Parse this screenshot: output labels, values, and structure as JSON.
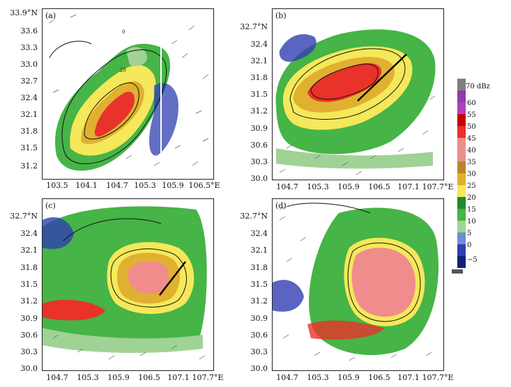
{
  "panels": [
    {
      "label": "(a)",
      "yticks": [
        "33.9°N",
        "33.6",
        "33.3",
        "33.0",
        "32.7",
        "32.4",
        "32.1",
        "31.8",
        "31.5",
        "31.2"
      ],
      "xticks": [
        "103.5",
        "104.1",
        "104.7",
        "105.3",
        "105.9",
        "106.5°E"
      ]
    },
    {
      "label": "(b)",
      "yticks": [
        "32.7°N",
        "32.4",
        "32.1",
        "31.8",
        "31.5",
        "31.2",
        "30.9",
        "30.6",
        "30.3",
        "30.0"
      ],
      "xticks": [
        "104.7",
        "105.3",
        "105.9",
        "106.5",
        "107.1",
        "107.7°E"
      ]
    },
    {
      "label": "(c)",
      "yticks": [
        "32.7°N",
        "32.4",
        "32.1",
        "31.8",
        "31.5",
        "31.2",
        "30.9",
        "30.6",
        "30.3",
        "30.0"
      ],
      "xticks": [
        "104.7",
        "105.3",
        "105.9",
        "106.5",
        "107.1",
        "107.7°E"
      ]
    },
    {
      "label": "(d)",
      "yticks": [
        "32.7°N",
        "32.4",
        "32.1",
        "31.8",
        "31.5",
        "31.2",
        "30.9",
        "30.6",
        "30.3",
        "30.0"
      ],
      "xticks": [
        "104.7",
        "105.3",
        "105.9",
        "106.5",
        "107.1",
        "107.7°E"
      ]
    }
  ],
  "colorbar": {
    "unit_label": "70 dBz",
    "levels": [
      "60",
      "55",
      "50",
      "45",
      "40",
      "35",
      "30",
      "25",
      "20",
      "15",
      "10",
      "5",
      "0",
      "−5"
    ],
    "colors": [
      "#7e7e7e",
      "#8a3fa8",
      "#b23fc0",
      "#c80000",
      "#e8322a",
      "#f08c8c",
      "#e89090",
      "#b8862a",
      "#e0b030",
      "#f5e85a",
      "#1e8c30",
      "#46b446",
      "#a0d296",
      "#6b8fd6",
      "#2f3fb0",
      "#141e78"
    ]
  },
  "contour_labels": [
    "0",
    "20"
  ]
}
